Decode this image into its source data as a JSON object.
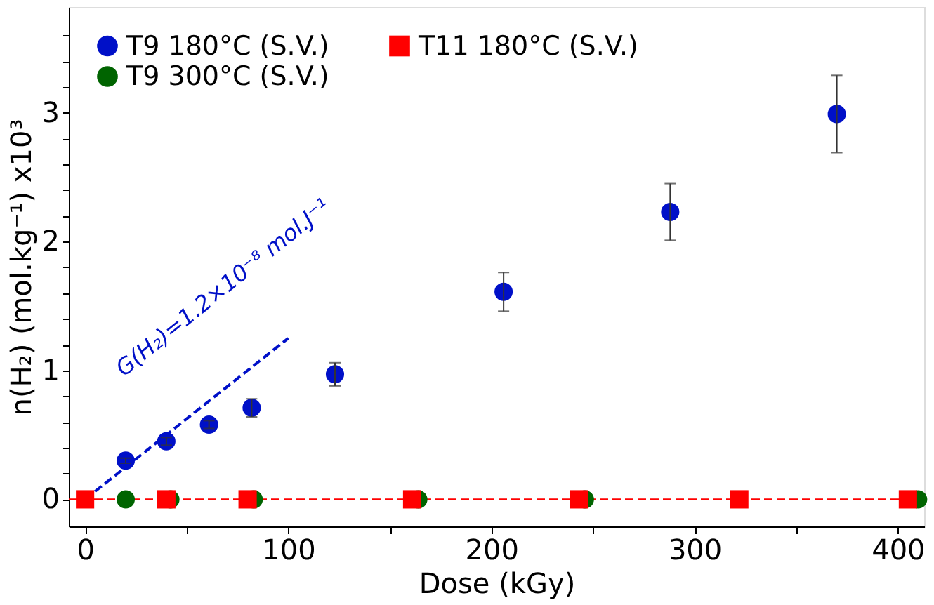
{
  "chart_data": {
    "type": "scatter",
    "xlabel": "Dose (kGy)",
    "ylabel": "n(H₂) (mol.kg⁻¹) x10³",
    "xlim": [
      -8,
      413
    ],
    "ylim": [
      -0.21,
      3.82
    ],
    "xticks": [
      0,
      {
        "value": 50,
        "label": null
      },
      100,
      {
        "value": 150,
        "label": null
      },
      200,
      {
        "value": 250,
        "label": null
      },
      300,
      {
        "value": 350,
        "label": null
      },
      400
    ],
    "yticks": [
      0,
      {
        "value": 0.2,
        "label": null
      },
      {
        "value": 0.4,
        "label": null
      },
      {
        "value": 0.6,
        "label": null
      },
      {
        "value": 0.8,
        "label": null
      },
      1,
      {
        "value": 1.2,
        "label": null
      },
      {
        "value": 1.4,
        "label": null
      },
      {
        "value": 1.6,
        "label": null
      },
      {
        "value": 1.8,
        "label": null
      },
      2,
      {
        "value": 2.2,
        "label": null
      },
      {
        "value": 2.4,
        "label": null
      },
      {
        "value": 2.6,
        "label": null
      },
      {
        "value": 2.8,
        "label": null
      },
      3,
      {
        "value": 3.2,
        "label": null
      },
      {
        "value": 3.4,
        "label": null
      },
      {
        "value": 3.6,
        "label": null
      }
    ],
    "grid": false,
    "legend": "top left",
    "series": [
      {
        "name": "T9 180°C (S.V.)",
        "color": "#0010c8",
        "marker": "circle",
        "x": [
          20,
          40,
          61,
          82,
          123,
          206,
          288,
          370
        ],
        "values": [
          0.3,
          0.45,
          0.58,
          0.71,
          0.97,
          1.61,
          2.23,
          2.99
        ],
        "errors": [
          0.02,
          0.03,
          0.03,
          0.07,
          0.09,
          0.15,
          0.22,
          0.3
        ]
      },
      {
        "name": "T9 300°C (S.V.)",
        "color": "#006400",
        "marker": "circle",
        "x": [
          20,
          42,
          83,
          164,
          246,
          410
        ],
        "values": [
          0,
          0,
          0,
          0,
          0,
          0
        ]
      },
      {
        "name": "T11 180°C (S.V.)",
        "color": "#ff0000",
        "marker": "square",
        "x": [
          0,
          40,
          80,
          161,
          243,
          322,
          405
        ],
        "values": [
          0,
          0,
          0,
          0,
          0,
          0,
          0
        ]
      },
      {
        "type": "line",
        "color": "#0010c8",
        "line_style": "dashed",
        "marker": "none",
        "x": [
          0,
          100
        ],
        "values": [
          0,
          1.25
        ]
      }
    ],
    "ref_lines": [
      {
        "axis": "y",
        "value": 0,
        "color": "#ff0000",
        "line_style": "dashed"
      }
    ],
    "annotations": [
      "G(H₂)=1.2×10⁻⁸ mol.J⁻¹"
    ]
  }
}
